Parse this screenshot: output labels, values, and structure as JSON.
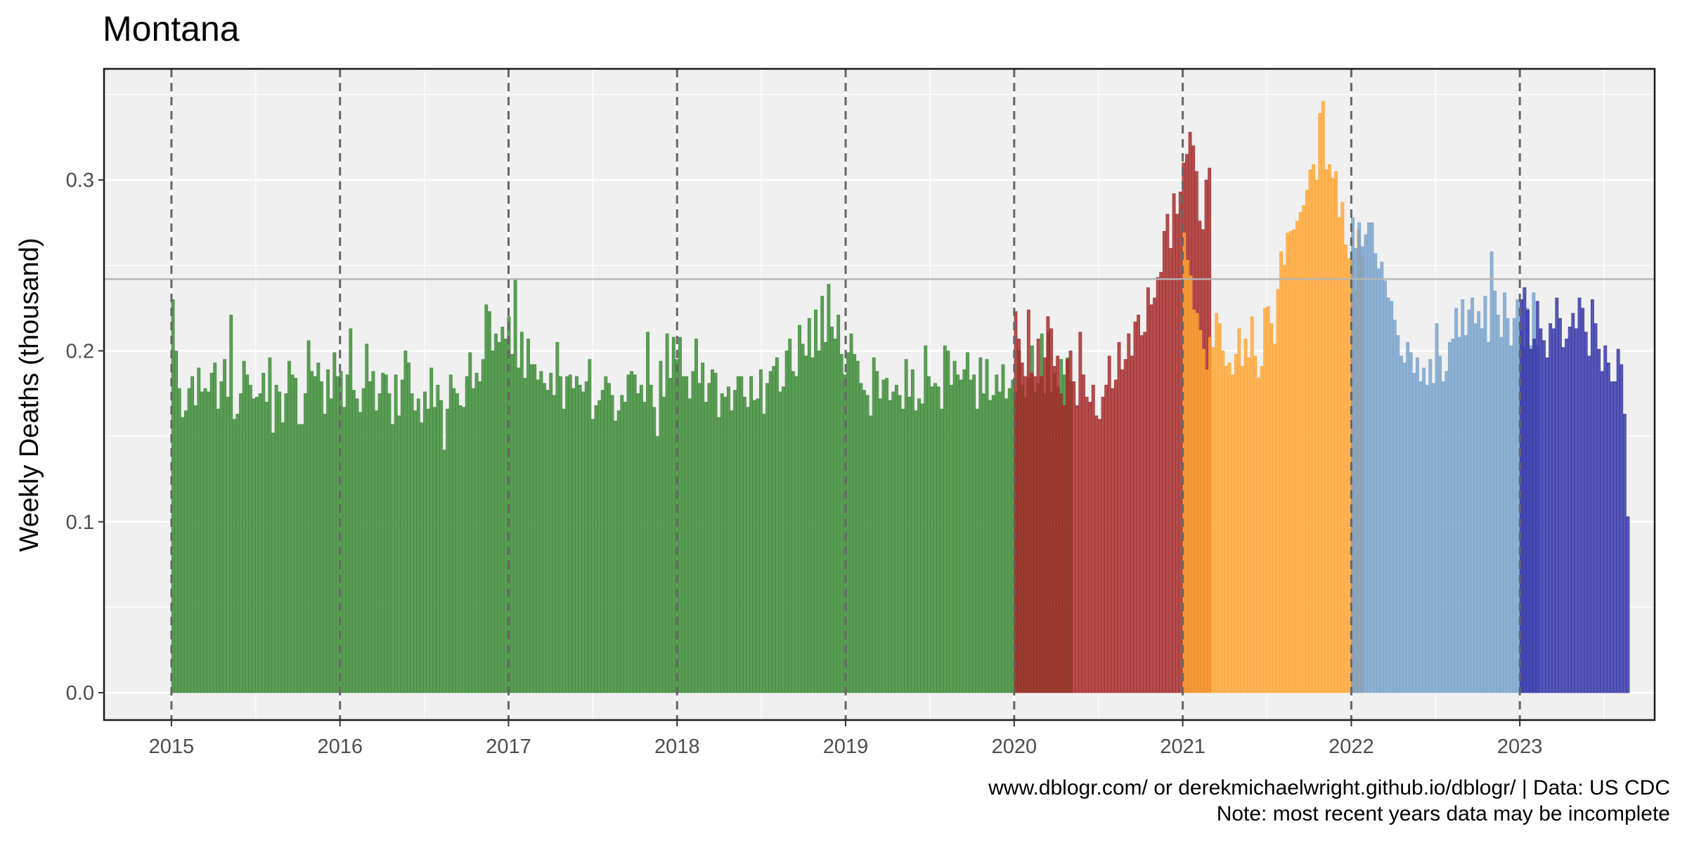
{
  "chart_data": {
    "type": "bar",
    "title": "Montana",
    "xlabel": "",
    "ylabel": "Weekly Deaths (thousand)",
    "x_ticks": [
      "2015",
      "2016",
      "2017",
      "2018",
      "2019",
      "2020",
      "2021",
      "2022",
      "2023"
    ],
    "y_ticks": [
      "0.0",
      "0.1",
      "0.2",
      "0.3"
    ],
    "xlim": [
      2014.6,
      2023.8
    ],
    "ylim": [
      -0.016,
      0.365
    ],
    "reference_line": 0.242,
    "year_lines": [
      2015,
      2016,
      2017,
      2018,
      2019,
      2020,
      2021,
      2022,
      2023
    ],
    "grid": true,
    "legend": "none",
    "caption": [
      "www.dblogr.com/ or derekmichaelwright.github.io/dblogr/ | Data: US CDC",
      "Note: most recent years data may be incomplete"
    ],
    "colors": {
      "2015-2019": "#3a8a35",
      "2020": "#a52a2a",
      "2021": "#ffa533",
      "2022": "#78a2cc",
      "2023": "#3535a8",
      "panel": "#f0f0f0",
      "reference": "#b5b5b5",
      "year_line": "#666666"
    },
    "series": [
      {
        "period": "2015-2019",
        "start_year": 2015,
        "values": [
          0.23,
          0.2,
          0.178,
          0.161,
          0.165,
          0.178,
          0.185,
          0.168,
          0.19,
          0.176,
          0.178,
          0.176,
          0.187,
          0.193,
          0.166,
          0.182,
          0.195,
          0.173,
          0.221,
          0.16,
          0.163,
          0.175,
          0.194,
          0.186,
          0.18,
          0.172,
          0.173,
          0.175,
          0.187,
          0.17,
          0.196,
          0.152,
          0.18,
          0.176,
          0.158,
          0.175,
          0.194,
          0.186,
          0.184,
          0.157,
          0.157,
          0.175,
          0.206,
          0.188,
          0.185,
          0.193,
          0.182,
          0.163,
          0.189,
          0.172,
          0.199,
          0.185,
          0.188,
          0.167,
          0.186,
          0.213,
          0.177,
          0.172,
          0.164,
          0.178,
          0.204,
          0.182,
          0.188,
          0.165,
          0.175,
          0.187,
          0.186,
          0.175,
          0.157,
          0.186,
          0.162,
          0.183,
          0.2,
          0.193,
          0.175,
          0.165,
          0.172,
          0.158,
          0.176,
          0.166,
          0.19,
          0.167,
          0.18,
          0.171,
          0.142,
          0.166,
          0.186,
          0.178,
          0.175,
          0.168,
          0.167,
          0.185,
          0.199,
          0.178,
          0.187,
          0.182,
          0.195,
          0.227,
          0.223,
          0.2,
          0.21,
          0.205,
          0.214,
          0.207,
          0.22,
          0.198,
          0.242,
          0.19,
          0.211,
          0.184,
          0.207,
          0.192,
          0.192,
          0.183,
          0.188,
          0.181,
          0.177,
          0.187,
          0.174,
          0.205,
          0.185,
          0.166,
          0.185,
          0.186,
          0.178,
          0.185,
          0.18,
          0.176,
          0.182,
          0.195,
          0.16,
          0.168,
          0.171,
          0.177,
          0.185,
          0.181,
          0.174,
          0.159,
          0.165,
          0.174,
          0.17,
          0.186,
          0.188,
          0.186,
          0.175,
          0.18,
          0.17,
          0.211,
          0.18,
          0.167,
          0.15,
          0.194,
          0.173,
          0.21,
          0.184,
          0.208,
          0.195,
          0.208,
          0.185,
          0.185,
          0.172,
          0.188,
          0.207,
          0.181,
          0.193,
          0.17,
          0.181,
          0.189,
          0.187,
          0.161,
          0.175,
          0.173,
          0.179,
          0.165,
          0.177,
          0.185,
          0.185,
          0.173,
          0.167,
          0.185,
          0.171,
          0.172,
          0.189,
          0.163,
          0.181,
          0.188,
          0.191,
          0.196,
          0.176,
          0.179,
          0.2,
          0.207,
          0.188,
          0.185,
          0.215,
          0.204,
          0.197,
          0.219,
          0.196,
          0.224,
          0.2,
          0.232,
          0.205,
          0.239,
          0.214,
          0.207,
          0.221,
          0.198,
          0.186,
          0.199,
          0.21,
          0.198,
          0.194,
          0.181,
          0.177,
          0.174,
          0.162,
          0.196,
          0.188,
          0.172,
          0.183,
          0.184,
          0.171,
          0.176,
          0.18,
          0.174,
          0.166,
          0.195,
          0.173,
          0.189,
          0.165,
          0.172,
          0.169,
          0.203,
          0.185,
          0.179,
          0.181,
          0.179,
          0.166,
          0.203,
          0.2,
          0.18,
          0.194,
          0.186,
          0.183,
          0.189,
          0.199,
          0.183,
          0.186,
          0.166,
          0.196,
          0.175,
          0.195,
          0.171,
          0.174,
          0.186,
          0.176,
          0.192,
          0.172,
          0.178,
          0.183,
          0.176,
          0.2,
          0.18,
          0.173,
          0.184,
          0.203,
          0.176,
          0.181,
          0.21,
          0.175,
          0.211,
          0.176,
          0.187,
          0.179,
          0.195,
          0.186,
          0.196,
          0.182
        ]
      },
      {
        "period": "2020",
        "start_year": 2020,
        "values": [
          0.223,
          0.207,
          0.193,
          0.185,
          0.224,
          0.187,
          0.185,
          0.207,
          0.185,
          0.196,
          0.22,
          0.213,
          0.191,
          0.197,
          0.175,
          0.168,
          0.195,
          0.2,
          0.182,
          0.168,
          0.211,
          0.186,
          0.173,
          0.17,
          0.18,
          0.162,
          0.16,
          0.173,
          0.18,
          0.197,
          0.178,
          0.183,
          0.205,
          0.189,
          0.195,
          0.21,
          0.197,
          0.217,
          0.221,
          0.209,
          0.211,
          0.237,
          0.227,
          0.231,
          0.243,
          0.246,
          0.27,
          0.28,
          0.26,
          0.292,
          0.28,
          0.293,
          0.31,
          0.315,
          0.328,
          0.32,
          0.305,
          0.276,
          0.271,
          0.3,
          0.307
        ]
      },
      {
        "period": "2021",
        "start_year": 2021,
        "values": [
          0.269,
          0.253,
          0.244,
          0.224,
          0.222,
          0.212,
          0.201,
          0.189,
          0.208,
          0.202,
          0.222,
          0.216,
          0.2,
          0.191,
          0.193,
          0.186,
          0.198,
          0.213,
          0.191,
          0.207,
          0.196,
          0.22,
          0.197,
          0.184,
          0.191,
          0.225,
          0.226,
          0.216,
          0.204,
          0.236,
          0.258,
          0.25,
          0.269,
          0.27,
          0.271,
          0.276,
          0.281,
          0.285,
          0.294,
          0.306,
          0.309,
          0.3,
          0.339,
          0.346,
          0.306,
          0.309,
          0.301,
          0.305,
          0.278,
          0.287,
          0.262,
          0.254,
          0.253,
          0.235,
          0.271,
          0.255
        ]
      },
      {
        "period": "2022",
        "start_year": 2022,
        "values": [
          0.278,
          0.26,
          0.275,
          0.261,
          0.268,
          0.275,
          0.275,
          0.257,
          0.248,
          0.252,
          0.241,
          0.231,
          0.229,
          0.218,
          0.209,
          0.197,
          0.193,
          0.205,
          0.199,
          0.187,
          0.196,
          0.182,
          0.19,
          0.18,
          0.195,
          0.181,
          0.216,
          0.197,
          0.182,
          0.188,
          0.205,
          0.207,
          0.225,
          0.208,
          0.23,
          0.209,
          0.224,
          0.231,
          0.216,
          0.223,
          0.213,
          0.232,
          0.205,
          0.258,
          0.235,
          0.221,
          0.208,
          0.234,
          0.219,
          0.203,
          0.219,
          0.23,
          0.212,
          0.202,
          0.225,
          0.203,
          0.234,
          0.203
        ]
      },
      {
        "period": "2023",
        "start_year": 2023,
        "values": [
          0.23,
          0.237,
          0.224,
          0.201,
          0.207,
          0.229,
          0.213,
          0.206,
          0.196,
          0.216,
          0.213,
          0.231,
          0.219,
          0.202,
          0.207,
          0.214,
          0.222,
          0.213,
          0.231,
          0.225,
          0.211,
          0.197,
          0.23,
          0.216,
          0.201,
          0.188,
          0.203,
          0.193,
          0.182,
          0.182,
          0.201,
          0.192,
          0.163,
          0.103
        ]
      }
    ]
  }
}
